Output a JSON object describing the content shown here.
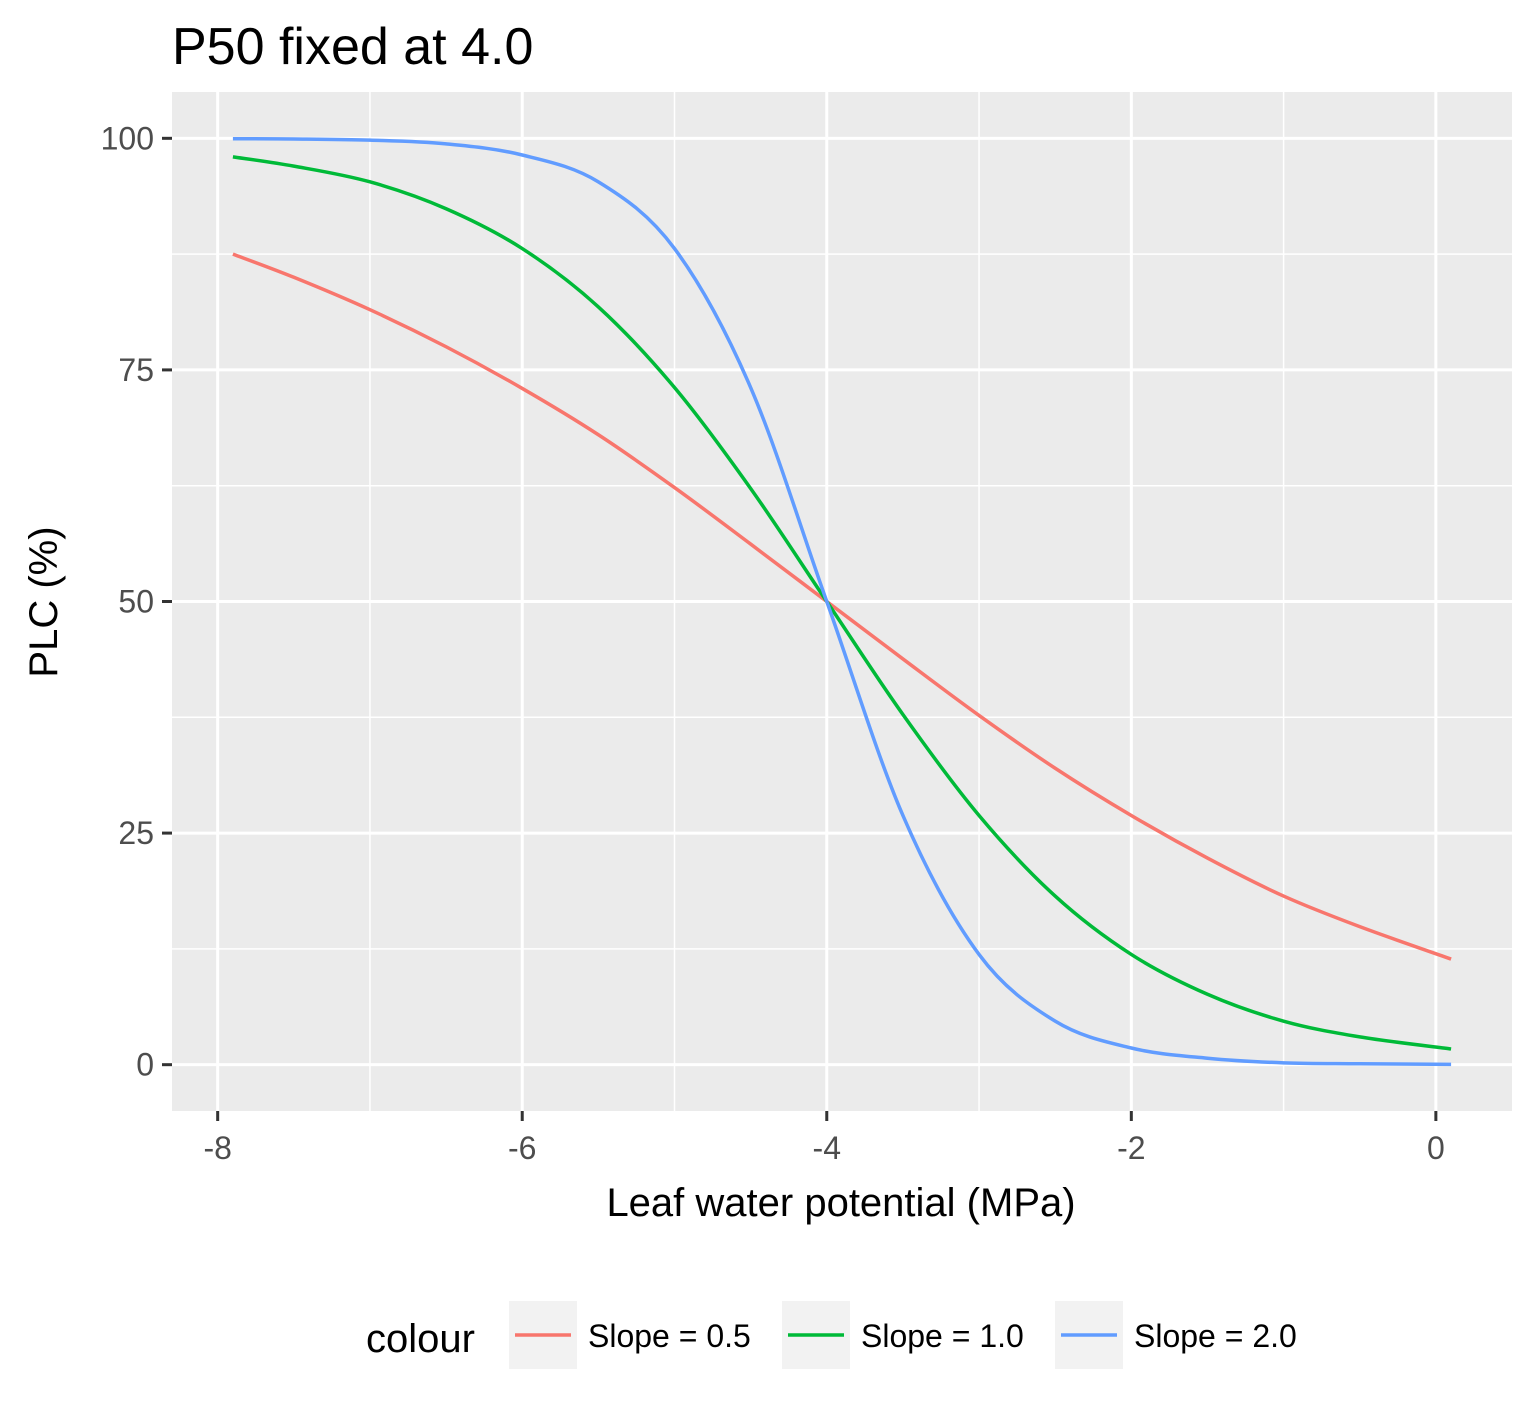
{
  "chart_data": {
    "type": "line",
    "title": "P50 fixed at 4.0",
    "xlabel": "Leaf water potential (MPa)",
    "ylabel": "PLC (%)",
    "xlim": [
      -8.3,
      0.5
    ],
    "ylim": [
      -5,
      105
    ],
    "x_ticks": [
      -8,
      -6,
      -4,
      -2,
      0
    ],
    "x_tick_labels": [
      "-8",
      "-6",
      "-4",
      "-2",
      "0"
    ],
    "y_ticks": [
      0,
      25,
      50,
      75,
      100
    ],
    "y_tick_labels": [
      "0",
      "25",
      "50",
      "75",
      "100"
    ],
    "grid": true,
    "legend_title": "colour",
    "legend_position": "bottom",
    "x": [
      -7.9,
      -7.5,
      -7.0,
      -6.5,
      -6.0,
      -5.5,
      -5.0,
      -4.5,
      -4.0,
      -3.5,
      -3.0,
      -2.5,
      -2.0,
      -1.5,
      -1.0,
      -0.5,
      0.1
    ],
    "series": [
      {
        "name": "Slope = 0.5",
        "color": "#F8766D",
        "values": [
          87.5,
          85.0,
          81.5,
          77.5,
          73.0,
          68.0,
          62.3,
          56.2,
          50.0,
          43.8,
          37.7,
          32.0,
          26.9,
          22.3,
          18.2,
          14.9,
          11.4
        ]
      },
      {
        "name": "Slope = 1.0",
        "color": "#00BA38",
        "values": [
          98.0,
          97.0,
          95.3,
          92.4,
          88.1,
          81.8,
          73.1,
          62.2,
          50.0,
          37.8,
          26.9,
          18.2,
          11.9,
          7.6,
          4.7,
          3.0,
          1.7
        ]
      },
      {
        "name": "Slope = 2.0",
        "color": "#619CFF",
        "values": [
          99.96,
          99.93,
          99.8,
          99.4,
          98.2,
          95.3,
          88.1,
          73.1,
          50.0,
          26.9,
          11.9,
          4.7,
          1.8,
          0.7,
          0.2,
          0.1,
          0.03
        ]
      }
    ]
  }
}
